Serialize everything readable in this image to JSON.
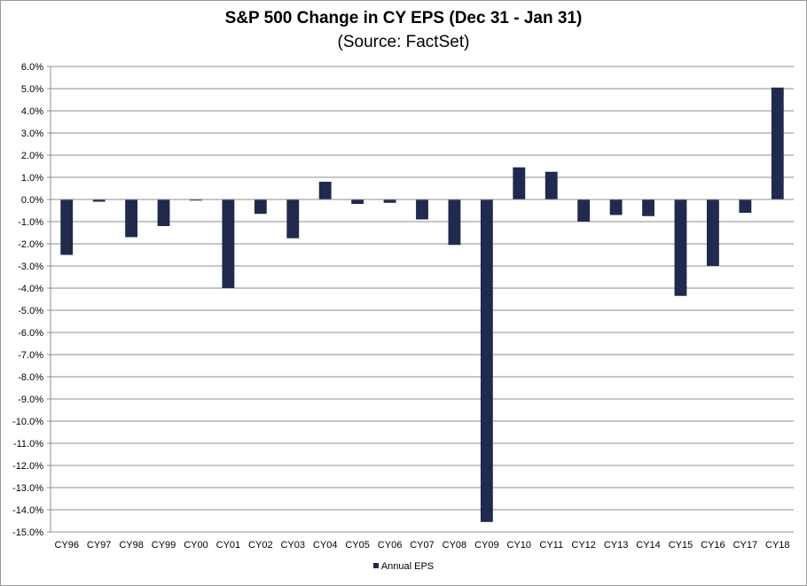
{
  "chart_data": {
    "type": "bar",
    "title": "S&P 500 Change in CY EPS (Dec 31 - Jan 31)",
    "subtitle": "(Source: FactSet)",
    "categories": [
      "CY96",
      "CY97",
      "CY98",
      "CY99",
      "CY00",
      "CY01",
      "CY02",
      "CY03",
      "CY04",
      "CY05",
      "CY06",
      "CY07",
      "CY08",
      "CY09",
      "CY10",
      "CY11",
      "CY12",
      "CY13",
      "CY14",
      "CY15",
      "CY16",
      "CY17",
      "CY18"
    ],
    "series": [
      {
        "name": "Annual EPS",
        "color": "#1f2a4d",
        "values": [
          -2.5,
          -0.1,
          -1.7,
          -1.2,
          -0.05,
          -4.0,
          -0.65,
          -1.75,
          0.8,
          -0.2,
          -0.15,
          -0.9,
          -2.05,
          -14.55,
          1.45,
          1.25,
          -1.0,
          -0.7,
          -0.75,
          -4.35,
          -3.0,
          -0.6,
          5.05
        ]
      }
    ],
    "yticks": [
      "6.0%",
      "5.0%",
      "4.0%",
      "3.0%",
      "2.0%",
      "1.0%",
      "0.0%",
      "-1.0%",
      "-2.0%",
      "-3.0%",
      "-4.0%",
      "-5.0%",
      "-6.0%",
      "-7.0%",
      "-8.0%",
      "-9.0%",
      "-10.0%",
      "-11.0%",
      "-12.0%",
      "-13.0%",
      "-14.0%",
      "-15.0%"
    ],
    "ylim": [
      -15,
      6
    ],
    "xlabel": "",
    "ylabel": "",
    "grid": true,
    "legend_position": "bottom"
  }
}
